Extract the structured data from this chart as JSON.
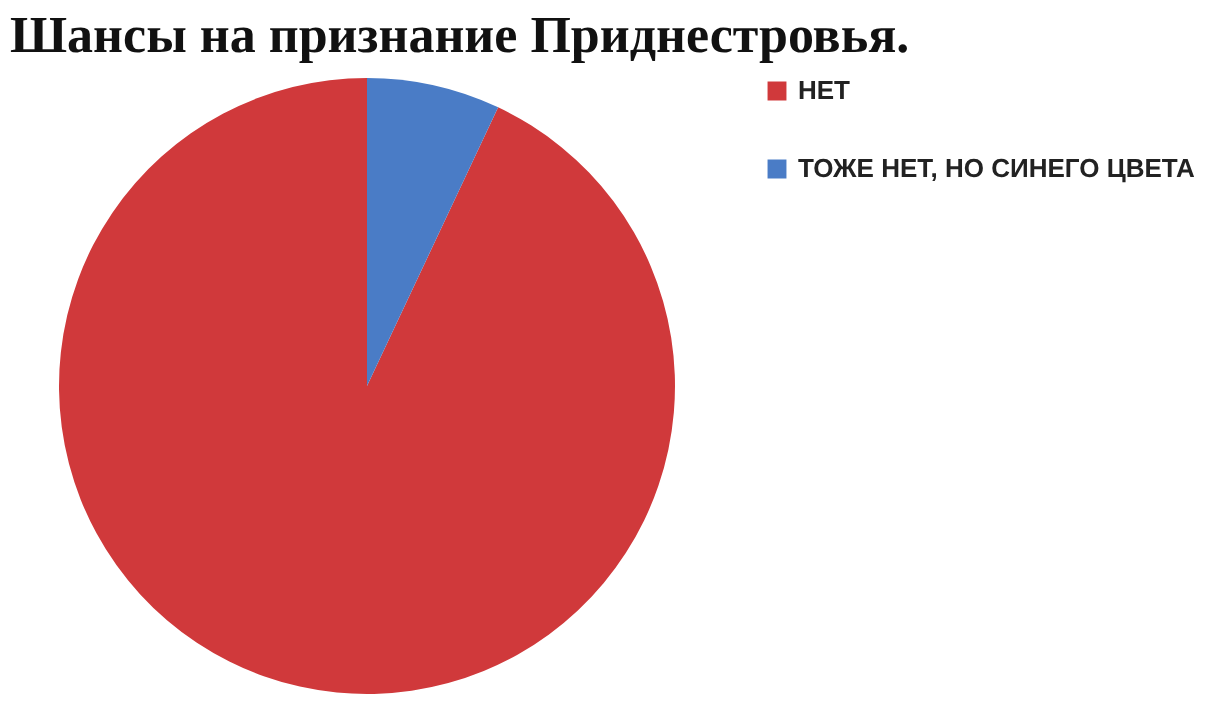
{
  "chart_data": {
    "type": "pie",
    "title": "Шансы на признание Приднестровья.",
    "categories": [
      "НЕТ",
      "ТОЖЕ НЕТ, НО СИНЕГО ЦВЕТА"
    ],
    "values": [
      93,
      7
    ],
    "colors": [
      "#d0393b",
      "#4a7cc6"
    ],
    "legend": "right"
  }
}
